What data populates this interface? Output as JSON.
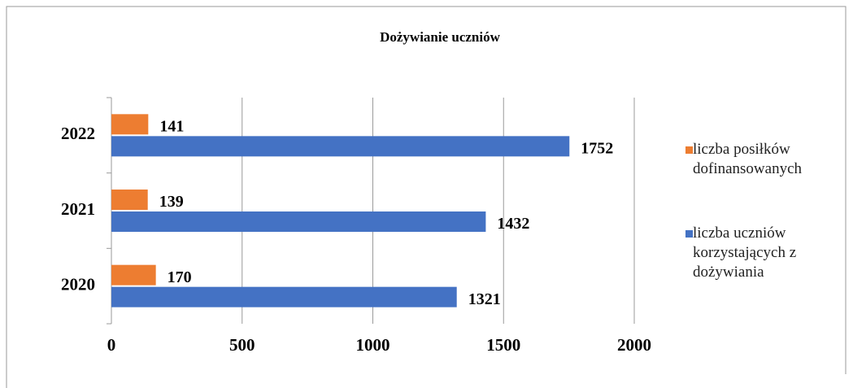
{
  "chart_data": {
    "type": "hbar",
    "title": "Dożywianie uczniów",
    "categories": [
      "2020",
      "2021",
      "2022"
    ],
    "series": [
      {
        "name": "liczba posiłków dofinansowanych",
        "color": "#ed7d31",
        "values": [
          170,
          139,
          141
        ]
      },
      {
        "name": "liczba uczniów korzystających z dożywiania",
        "color": "#4472c4",
        "values": [
          1321,
          1432,
          1752
        ]
      }
    ],
    "xlim": [
      0,
      2000
    ],
    "xticks": [
      0,
      500,
      1000,
      1500,
      2000
    ],
    "grid": true,
    "legend": "right"
  }
}
